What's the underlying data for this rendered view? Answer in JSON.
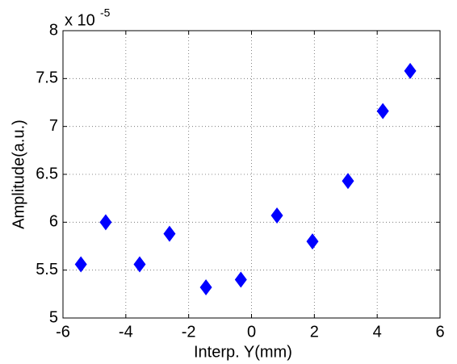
{
  "chart_data": {
    "type": "scatter",
    "x_label": "Interp. Y(mm)",
    "y_label": "Amplitude(a.u.)",
    "y_multiplier": {
      "base": "x 10",
      "exponent": "-5"
    },
    "marker": "diamond",
    "color": "#0000ff",
    "x": [
      -5.43,
      -4.64,
      -3.56,
      -2.61,
      -1.45,
      -0.34,
      0.81,
      1.94,
      3.07,
      4.18,
      5.05
    ],
    "values": [
      5.56,
      6.0,
      5.56,
      5.88,
      5.32,
      5.4,
      6.07,
      5.8,
      6.43,
      7.16,
      7.58
    ],
    "xlim": [
      -6,
      6
    ],
    "xticks": [
      -6,
      -4,
      -2,
      0,
      2,
      4,
      6
    ],
    "ylim": [
      5,
      8
    ],
    "yticks": [
      5,
      5.5,
      6,
      6.5,
      7,
      7.5,
      8
    ],
    "grid": true
  }
}
